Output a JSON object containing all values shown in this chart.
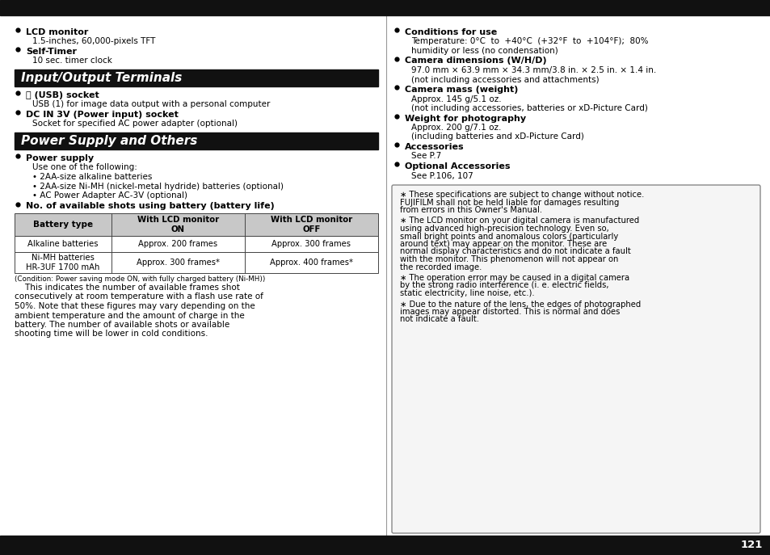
{
  "bg_color": "#ffffff",
  "top_bar_color": "#111111",
  "header_bg": "#111111",
  "page_number": "121",
  "left_col": {
    "intro_items": [
      {
        "bold": "LCD monitor",
        "normal": "1.5-inches, 60,000-pixels TFT"
      },
      {
        "bold": "Self-Timer",
        "normal": "10 sec. timer clock"
      }
    ],
    "section1_title": "Input/Output Terminals",
    "section1_items": [
      {
        "bold": "⭐ (USB) socket",
        "normal": "USB (1) for image data output with a personal computer"
      },
      {
        "bold": "DC IN 3V (Power input) socket",
        "normal": "Socket for specified AC power adapter (optional)"
      }
    ],
    "section2_title": "Power Supply and Others",
    "section2_items": [
      {
        "bold": "Power supply",
        "lines": [
          "Use one of the following:",
          "• 2AA-size alkaline batteries",
          "• 2AA-size Ni-MH (nickel-metal hydride) batteries (optional)",
          "• AC Power Adapter AC-3V (optional)"
        ]
      }
    ],
    "battery_note": "No. of available shots using battery (battery life)",
    "table_headers": [
      "Battery type",
      "With LCD monitor\nON",
      "With LCD monitor\nOFF"
    ],
    "table_rows": [
      [
        "Alkaline batteries",
        "Approx. 200 frames",
        "Approx. 300 frames"
      ],
      [
        "Ni-MH batteries\nHR-3UF 1700 mAh",
        "Approx. 300 frames*",
        "Approx. 400 frames*"
      ]
    ],
    "condition_note": "(Condition: Power saving mode ON, with fully charged battery (Ni-MH))",
    "paragraph_lines": [
      "    This indicates the number of available frames shot",
      "consecutively at room temperature with a flash use rate of",
      "50%. Note that these figures may vary depending on the",
      "ambient temperature and the amount of charge in the",
      "battery. The number of available shots or available",
      "shooting time will be lower in cold conditions."
    ]
  },
  "right_col": {
    "items": [
      {
        "bold": "Conditions for use",
        "lines": [
          "Temperature: 0°C  to  +40°C  (+32°F  to  +104°F);  80%",
          "humidity or less (no condensation)"
        ]
      },
      {
        "bold": "Camera dimensions (W/H/D)",
        "lines": [
          "97.0 mm × 63.9 mm × 34.3 mm/3.8 in. × 2.5 in. × 1.4 in.",
          "(not including accessories and attachments)"
        ]
      },
      {
        "bold": "Camera mass (weight)",
        "lines": [
          "Approx. 145 g/5.1 oz.",
          "(not including accessories, batteries or xD-Picture Card)"
        ]
      },
      {
        "bold": "Weight for photography",
        "lines": [
          "Approx. 200 g/7.1 oz.",
          "(including batteries and xD-Picture Card)"
        ]
      },
      {
        "bold": "Accessories",
        "lines": [
          "See P.7"
        ]
      },
      {
        "bold": "Optional Accessories",
        "lines": [
          "See P.106, 107"
        ]
      }
    ],
    "notice_items": [
      [
        "∗ These specifications are subject to change without notice.",
        "FUJIFILM shall not be held liable for damages resulting",
        "from errors in this Owner's Manual."
      ],
      [
        "∗ The LCD monitor on your digital camera is manufactured",
        "using advanced high-precision technology. Even so,",
        "small bright points and anomalous colors (particularly",
        "around text) may appear on the monitor. These are",
        "normal display characteristics and do not indicate a fault",
        "with the monitor. This phenomenon will not appear on",
        "the recorded image."
      ],
      [
        "∗ The operation error may be caused in a digital camera",
        "by the strong radio interference (i. e. electric fields,",
        "static electricity, line noise, etc.)."
      ],
      [
        "∗ Due to the nature of the lens, the edges of photographed",
        "images may appear distorted. This is normal and does",
        "not indicate a fault."
      ]
    ]
  }
}
